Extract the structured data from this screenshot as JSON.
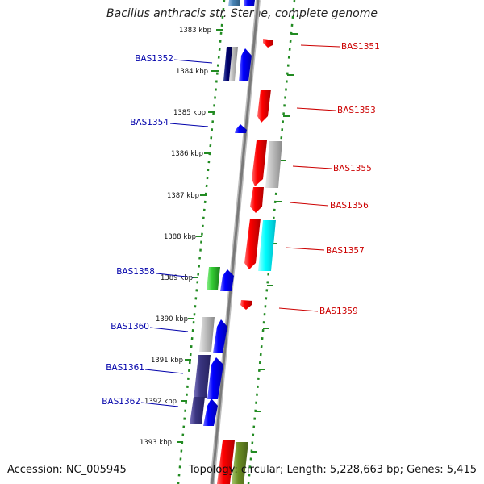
{
  "title": "Bacillus anthracis str. Sterne, complete genome",
  "accession": "Accession: NC_005945",
  "topology": "Topology: circular; Length: 5,228,663 bp; Genes: 5,415",
  "ruler_ticks": [
    "1383 kbp",
    "1384 kbp",
    "1385 kbp",
    "1386 kbp",
    "1387 kbp",
    "1388 kbp",
    "1389 kbp",
    "1390 kbp",
    "1391 kbp",
    "1392 kbp",
    "1393 kbp"
  ],
  "genes_left": [
    {
      "label": "BAS1352",
      "color": "#0000aa"
    },
    {
      "label": "BAS1354",
      "color": "#0000aa"
    },
    {
      "label": "BAS1358",
      "color": "#0000aa"
    },
    {
      "label": "BAS1360",
      "color": "#0000aa"
    },
    {
      "label": "BAS1361",
      "color": "#0000aa"
    },
    {
      "label": "BAS1362",
      "color": "#0000aa"
    }
  ],
  "genes_right": [
    {
      "label": "BAS1351",
      "color": "#cc0000"
    },
    {
      "label": "BAS1353",
      "color": "#cc0000"
    },
    {
      "label": "BAS1355",
      "color": "#cc0000"
    },
    {
      "label": "BAS1356",
      "color": "#cc0000"
    },
    {
      "label": "BAS1357",
      "color": "#cc0000"
    },
    {
      "label": "BAS1359",
      "color": "#cc0000"
    }
  ],
  "colors": {
    "backbone": "#888888",
    "ruler_dots": "#228b22",
    "forward_cds": "#0000ff",
    "reverse_cds": "#ff0000",
    "gray_feature": "#b4b4b4",
    "cyan_feature": "#00e5ee",
    "green_feature": "#33cc33",
    "navy_feature": "#000060",
    "slate_feature": "#3a3580",
    "olive_feature": "#6b8e23"
  }
}
